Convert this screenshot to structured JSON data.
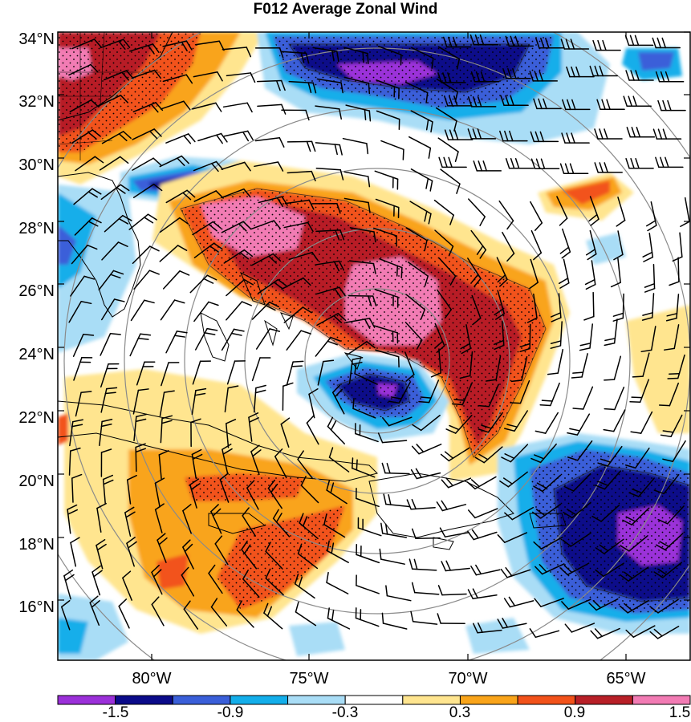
{
  "title": "F012 Average Zonal Wind",
  "lat_labels": [
    "34°N",
    "32°N",
    "30°N",
    "28°N",
    "26°N",
    "24°N",
    "22°N",
    "20°N",
    "18°N",
    "16°N"
  ],
  "lon_labels": [
    "80°W",
    "75°W",
    "70°W",
    "65°W"
  ],
  "colorbar": {
    "colors": [
      "#9b30d9",
      "#0b0b8a",
      "#3a5fd9",
      "#13aeea",
      "#a9ddf6",
      "#ffffff",
      "#ffe58f",
      "#f9a41a",
      "#f2521a",
      "#b81f27",
      "#f27bb4"
    ],
    "labels": [
      "-1.5",
      "-0.9",
      "-0.3",
      "0.3",
      "0.9",
      "1.5"
    ]
  },
  "legend_note": "",
  "colors": {
    "land_outline": "#000000",
    "range_rings": "#8a8a8a",
    "stipple": "#000000",
    "frame": "#000000"
  }
}
